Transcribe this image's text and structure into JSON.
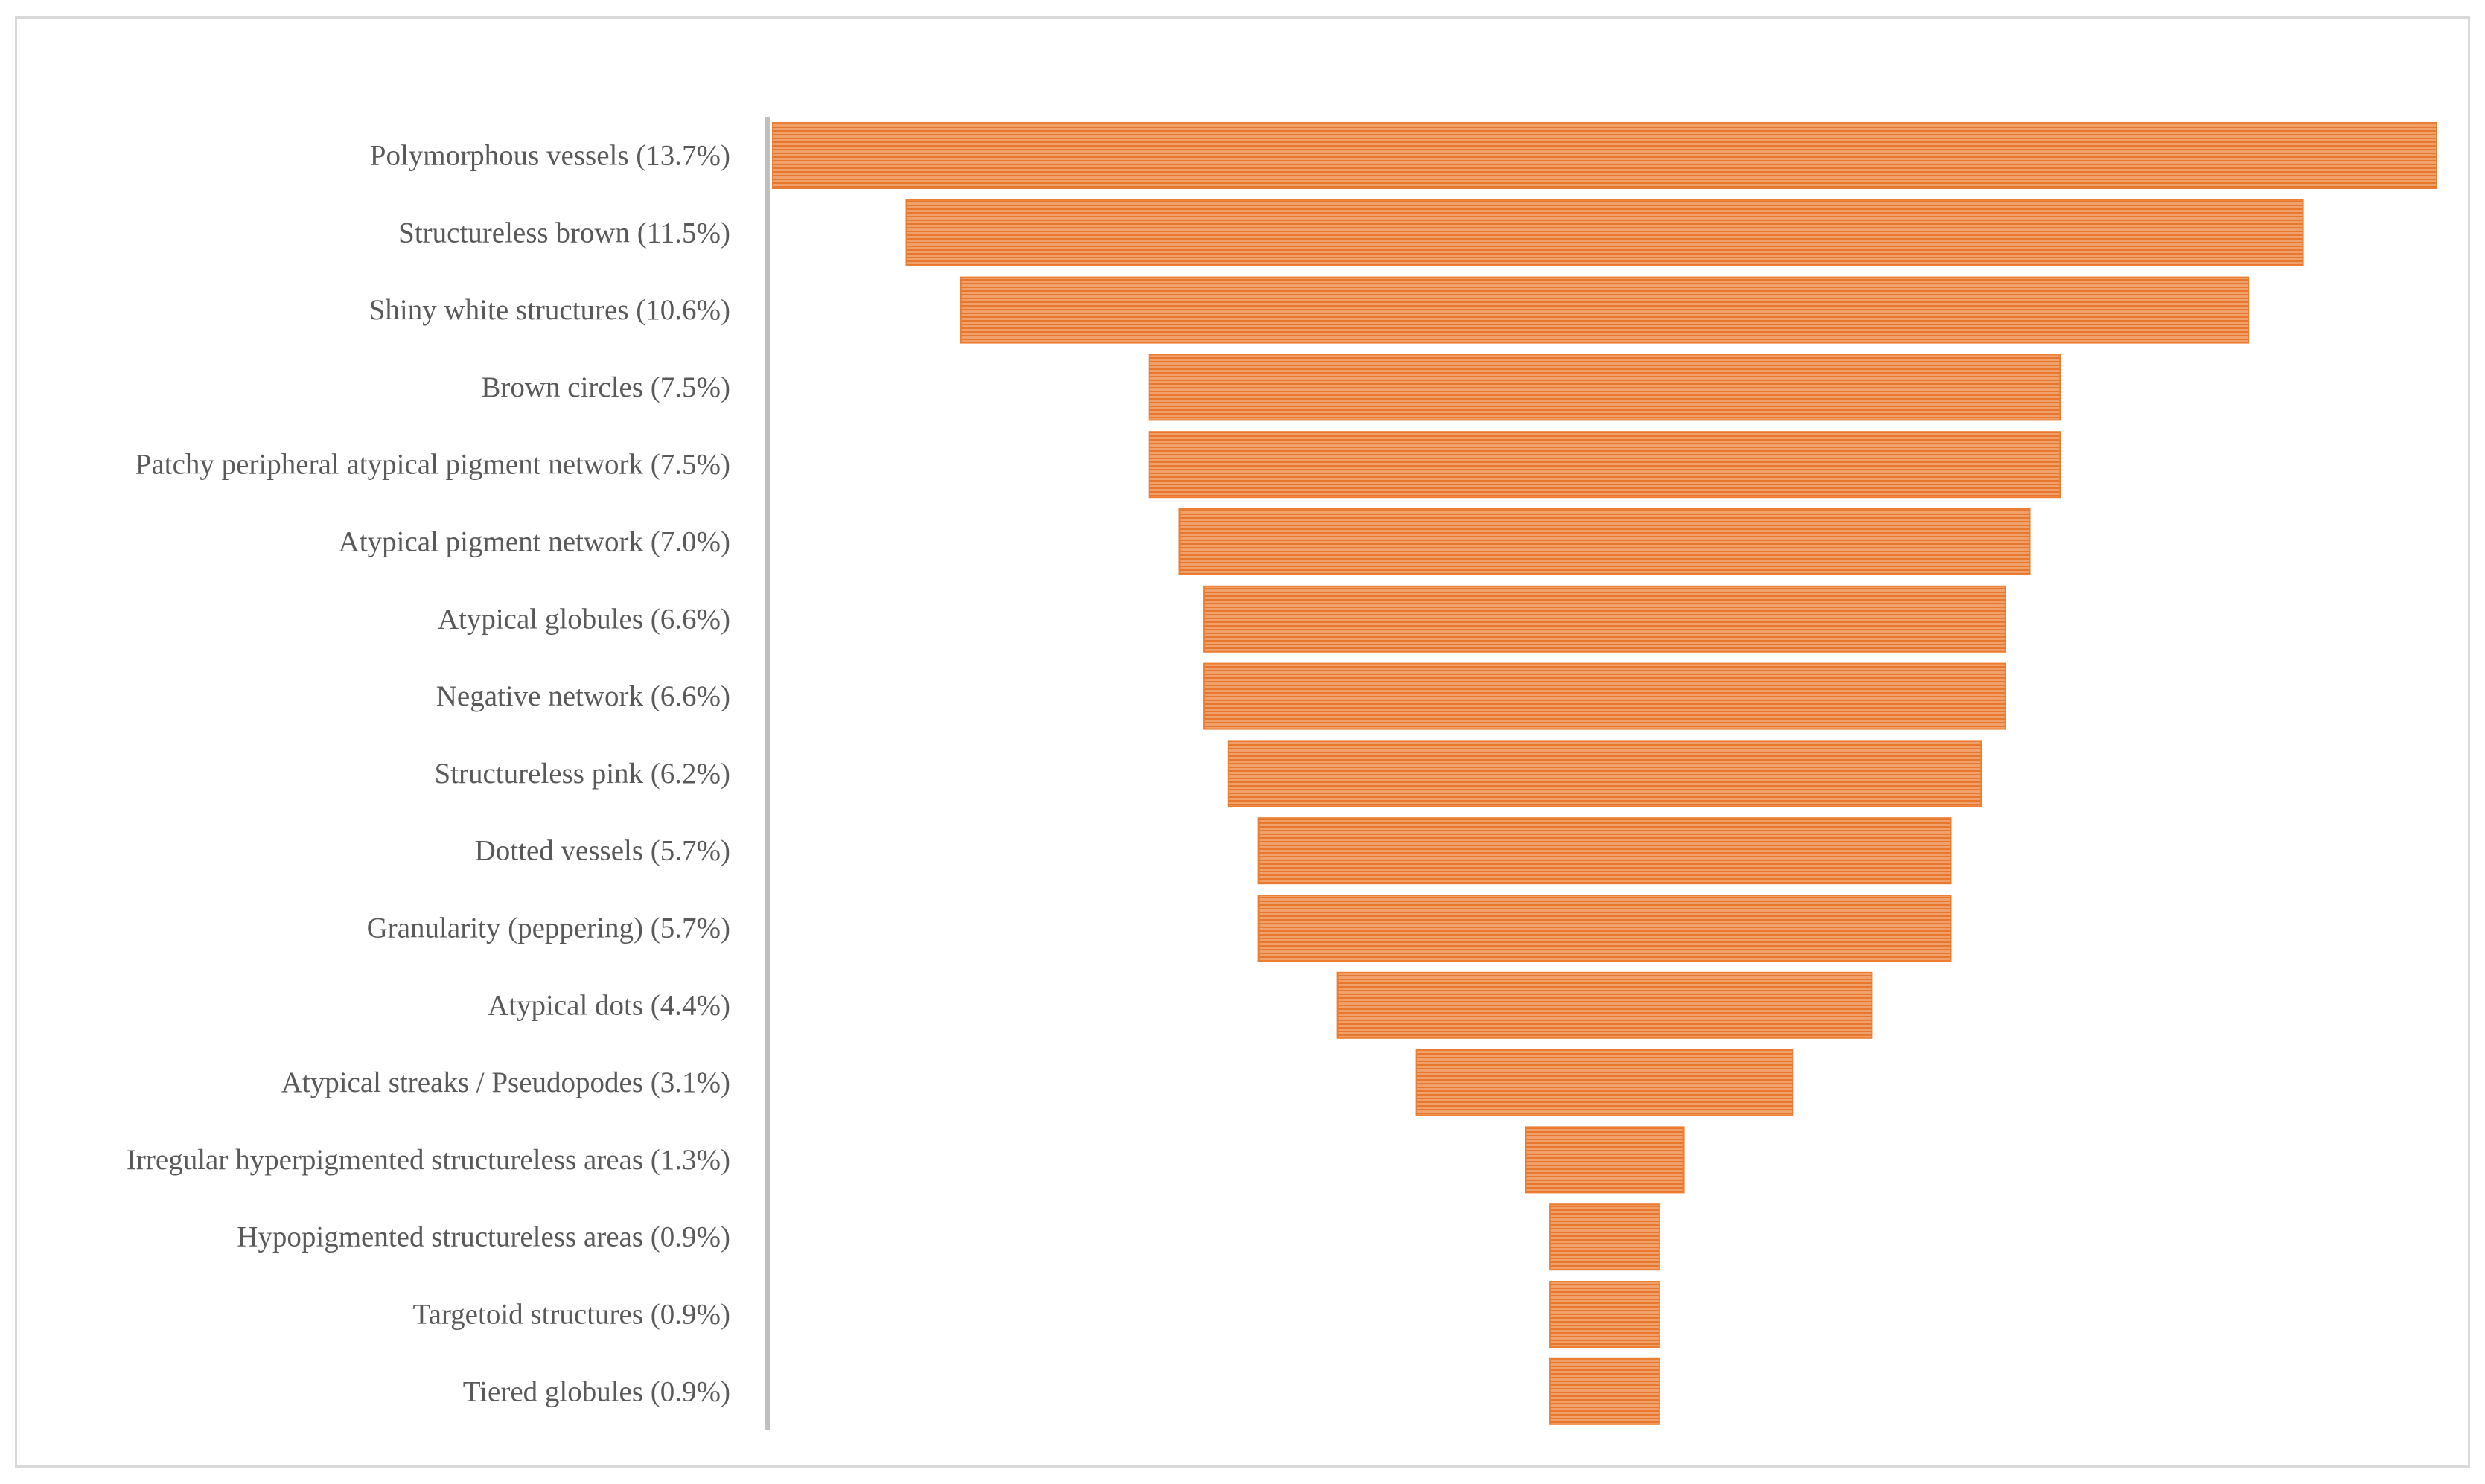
{
  "chart_data": {
    "type": "bar",
    "orientation": "horizontal",
    "style": "funnel",
    "title": "",
    "xlabel": "",
    "ylabel": "",
    "categories": [
      "Polymorphous vessels (13.7%)",
      "Structureless brown (11.5%)",
      "Shiny white structures (10.6%)",
      "Brown circles (7.5%)",
      "Patchy peripheral atypical pigment network (7.5%)",
      "Atypical pigment network (7.0%)",
      "Atypical globules (6.6%)",
      "Negative network (6.6%)",
      "Structureless pink (6.2%)",
      "Dotted vessels (5.7%)",
      "Granularity (peppering) (5.7%)",
      "Atypical dots (4.4%)",
      "Atypical streaks / Pseudopodes (3.1%)",
      "Irregular hyperpigmented structureless areas (1.3%)",
      "Hypopigmented structureless areas (0.9%)",
      "Targetoid structures (0.9%)",
      "Tiered globules (0.9%)"
    ],
    "values": [
      13.7,
      11.5,
      10.6,
      7.5,
      7.5,
      7.0,
      6.6,
      6.6,
      6.2,
      5.7,
      5.7,
      4.4,
      3.1,
      1.3,
      0.9,
      0.9,
      0.9
    ],
    "xlim": [
      0,
      13.7
    ],
    "grid": false,
    "legend": "none",
    "colors": {
      "bar_fill": "#f0a06a",
      "bar_stripe": "#e8772e",
      "bar_edge": "#ed7d31",
      "axis": "#bfbfbf",
      "label": "#595959",
      "frame": "#d9d9d9"
    }
  }
}
